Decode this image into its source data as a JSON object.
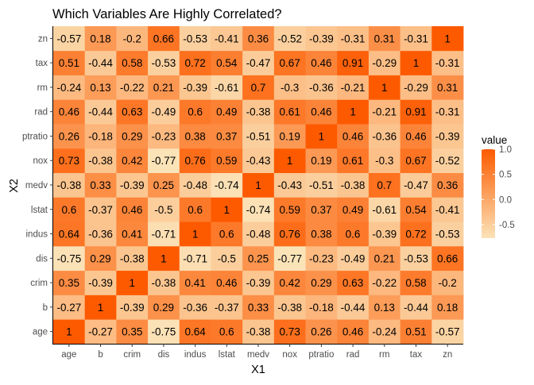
{
  "chart_data": {
    "type": "heatmap",
    "title": "Which Variables Are Highly Correlated?",
    "xlabel": "X1",
    "ylabel": "X2",
    "x_categories": [
      "age",
      "b",
      "crim",
      "dis",
      "indus",
      "lstat",
      "medv",
      "nox",
      "ptratio",
      "rad",
      "rm",
      "tax",
      "zn"
    ],
    "y_categories": [
      "age",
      "b",
      "crim",
      "dis",
      "indus",
      "lstat",
      "medv",
      "nox",
      "ptratio",
      "rad",
      "rm",
      "tax",
      "zn"
    ],
    "values": [
      [
        1,
        -0.27,
        0.35,
        -0.75,
        0.64,
        0.6,
        -0.38,
        0.73,
        0.26,
        0.46,
        -0.24,
        0.51,
        -0.57
      ],
      [
        -0.27,
        1,
        -0.39,
        0.29,
        -0.36,
        -0.37,
        0.33,
        -0.38,
        -0.18,
        -0.44,
        0.13,
        -0.44,
        0.18
      ],
      [
        0.35,
        -0.39,
        1,
        -0.38,
        0.41,
        0.46,
        -0.39,
        0.42,
        0.29,
        0.63,
        -0.22,
        0.58,
        -0.2
      ],
      [
        -0.75,
        0.29,
        -0.38,
        1,
        -0.71,
        -0.5,
        0.25,
        -0.77,
        -0.23,
        -0.49,
        0.21,
        -0.53,
        0.66
      ],
      [
        0.64,
        -0.36,
        0.41,
        -0.71,
        1,
        0.6,
        -0.48,
        0.76,
        0.38,
        0.6,
        -0.39,
        0.72,
        -0.53
      ],
      [
        0.6,
        -0.37,
        0.46,
        -0.5,
        0.6,
        1,
        -0.74,
        0.59,
        0.37,
        0.49,
        -0.61,
        0.54,
        -0.41
      ],
      [
        -0.38,
        0.33,
        -0.39,
        0.25,
        -0.48,
        -0.74,
        1,
        -0.43,
        -0.51,
        -0.38,
        0.7,
        -0.47,
        0.36
      ],
      [
        0.73,
        -0.38,
        0.42,
        -0.77,
        0.76,
        0.59,
        -0.43,
        1,
        0.19,
        0.61,
        -0.3,
        0.67,
        -0.52
      ],
      [
        0.26,
        -0.18,
        0.29,
        -0.23,
        0.38,
        0.37,
        -0.51,
        0.19,
        1,
        0.46,
        -0.36,
        0.46,
        -0.39
      ],
      [
        0.46,
        -0.44,
        0.63,
        -0.49,
        0.6,
        0.49,
        -0.38,
        0.61,
        0.46,
        1,
        -0.21,
        0.91,
        -0.31
      ],
      [
        -0.24,
        0.13,
        -0.22,
        0.21,
        -0.39,
        -0.61,
        0.7,
        -0.3,
        -0.36,
        -0.21,
        1,
        -0.29,
        0.31
      ],
      [
        0.51,
        -0.44,
        0.58,
        -0.53,
        0.72,
        0.54,
        -0.47,
        0.67,
        0.46,
        0.91,
        -0.29,
        1,
        -0.31
      ],
      [
        -0.57,
        0.18,
        -0.2,
        0.66,
        -0.53,
        -0.41,
        0.36,
        -0.52,
        -0.39,
        -0.31,
        0.31,
        -0.31,
        1
      ]
    ],
    "legend": {
      "title": "value",
      "position": "right",
      "ticks": [
        1.0,
        0.5,
        0.0,
        -0.5
      ],
      "tick_labels": [
        "1.0",
        "0.5",
        "0.0",
        "-0.5"
      ],
      "min": -0.77,
      "max": 1,
      "color_low": "#fbe3b8",
      "color_high": "#fd5a00"
    },
    "grid": false,
    "axis_line_color": "#000000"
  }
}
